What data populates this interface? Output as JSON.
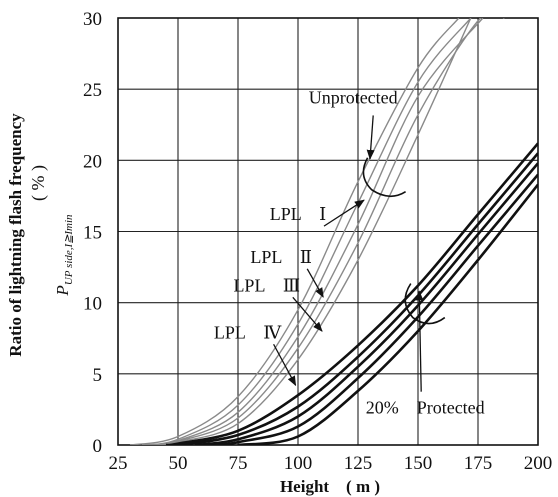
{
  "chart_data": {
    "type": "line",
    "xlabel": "Height　( m )",
    "ylabel_main": "Ratio of lightning flash frequency",
    "ylabel_unit": "( % )",
    "ylabel_symbol": "P",
    "ylabel_subscript": "UP side,I≧Imin",
    "xlim": [
      25,
      200
    ],
    "ylim": [
      0,
      30
    ],
    "x_ticks": [
      25,
      50,
      75,
      100,
      125,
      150,
      175,
      200
    ],
    "y_ticks": [
      0,
      5,
      10,
      15,
      20,
      25,
      30
    ],
    "grid": true,
    "colors": {
      "unprotected": "#8a8a8a",
      "protected": "#111111",
      "grid": "#222222",
      "annotation": "#111111"
    },
    "series": [
      {
        "name": "Unprotected",
        "group": "unprotected",
        "x": [
          30,
          50,
          75,
          100,
          125,
          150,
          167
        ],
        "y": [
          0,
          0.6,
          3.4,
          9.5,
          18.5,
          26.5,
          30
        ]
      },
      {
        "name": "LPL I",
        "group": "unprotected",
        "x": [
          35,
          50,
          75,
          100,
          125,
          150,
          172
        ],
        "y": [
          0,
          0.4,
          2.8,
          8.5,
          17.0,
          25.5,
          30
        ]
      },
      {
        "name": "LPL II",
        "group": "unprotected",
        "x": [
          38,
          50,
          75,
          100,
          125,
          150,
          177
        ],
        "y": [
          0,
          0.3,
          2.3,
          7.6,
          15.5,
          24.5,
          30
        ]
      },
      {
        "name": "LPL III",
        "group": "unprotected",
        "x": [
          40,
          50,
          75,
          100,
          125,
          150,
          176,
          186
        ],
        "y": [
          0,
          0.25,
          1.9,
          6.8,
          14.2,
          23.2,
          30,
          30
        ]
      },
      {
        "name": "LPL IV",
        "group": "unprotected",
        "x": [
          42,
          50,
          75,
          100,
          125,
          150,
          172
        ],
        "y": [
          0,
          0.2,
          1.5,
          6.0,
          13.0,
          21.8,
          30
        ]
      },
      {
        "name": "",
        "group": "protected",
        "x": [
          45,
          50,
          75,
          100,
          125,
          150,
          175,
          200
        ],
        "y": [
          0,
          0.1,
          1.0,
          3.5,
          7.0,
          11.2,
          16.2,
          21.2
        ]
      },
      {
        "name": "",
        "group": "protected",
        "x": [
          50,
          75,
          100,
          125,
          150,
          175,
          200
        ],
        "y": [
          0,
          0.7,
          2.7,
          6.2,
          10.5,
          15.5,
          20.5
        ]
      },
      {
        "name": "",
        "group": "protected",
        "x": [
          57,
          75,
          100,
          125,
          150,
          175,
          200
        ],
        "y": [
          0,
          0.4,
          2.0,
          5.5,
          9.8,
          14.8,
          19.8
        ]
      },
      {
        "name": "",
        "group": "protected",
        "x": [
          65,
          75,
          100,
          125,
          150,
          175,
          200
        ],
        "y": [
          0,
          0.2,
          1.3,
          4.7,
          9.0,
          14.0,
          19.0
        ]
      },
      {
        "name": "",
        "group": "protected",
        "x": [
          75,
          100,
          125,
          150,
          175,
          200
        ],
        "y": [
          0,
          0.6,
          3.8,
          8.0,
          13.0,
          18.3
        ]
      }
    ],
    "annotations": [
      {
        "text": "Unprotected",
        "key": "unprotected",
        "target": [
          130,
          20.1
        ],
        "label_at": [
          123,
          24
        ]
      },
      {
        "text": "LPL　Ⅰ",
        "key": "lpl1",
        "target": [
          127.5,
          17.2
        ],
        "label_at": [
          100,
          15.8
        ]
      },
      {
        "text": "LPL　Ⅱ",
        "key": "lpl2",
        "target": [
          110.5,
          10.4
        ],
        "label_at": [
          93,
          12.8
        ]
      },
      {
        "text": "LPL　Ⅲ",
        "key": "lpl3",
        "target": [
          110,
          8.0
        ],
        "label_at": [
          87,
          10.8
        ]
      },
      {
        "text": "LPL　Ⅳ",
        "key": "lpl4",
        "target": [
          99,
          4.2
        ],
        "label_at": [
          79,
          7.5
        ]
      },
      {
        "text": "20%　Protected",
        "key": "protected",
        "target": [
          150.5,
          10.8
        ],
        "label_at": [
          153,
          2.2
        ]
      }
    ]
  }
}
